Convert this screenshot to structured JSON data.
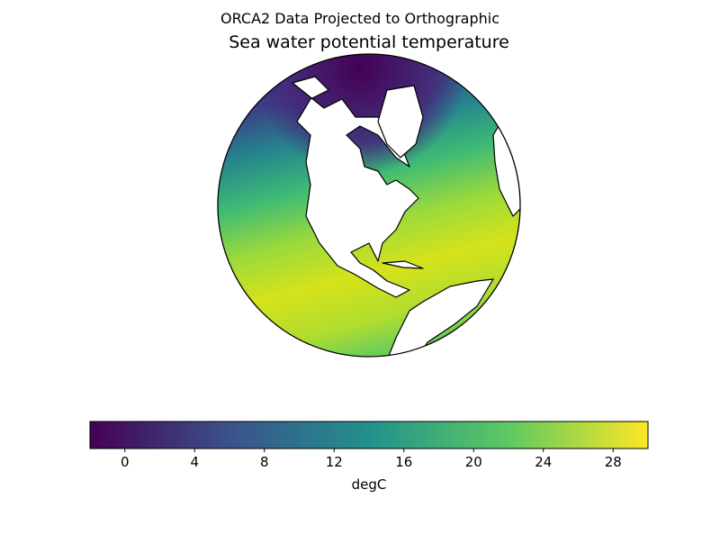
{
  "chart_data": {
    "type": "map",
    "suptitle": "ORCA2 Data Projected to Orthographic",
    "title": "Sea water potential temperature",
    "colorbar": {
      "label": "degC",
      "lim": [
        -2,
        30
      ],
      "ticks": [
        0,
        4,
        8,
        12,
        16,
        20,
        24,
        28
      ],
      "colormap": [
        "#440154",
        "#3b528b",
        "#21918c",
        "#5ec962",
        "#fde725"
      ]
    }
  }
}
